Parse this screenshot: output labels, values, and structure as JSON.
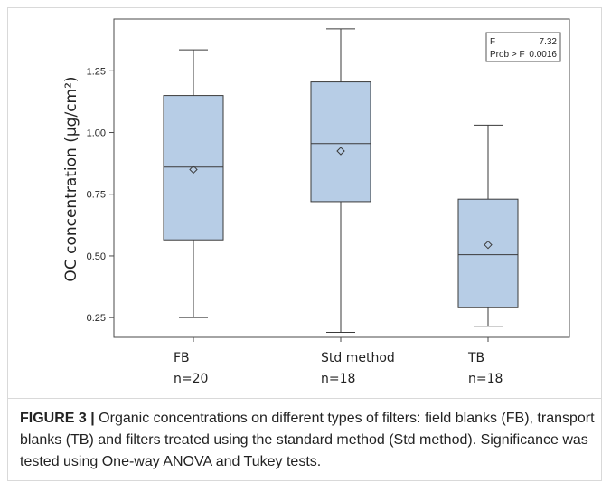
{
  "chart_data": {
    "type": "box",
    "ylabel": "OC concentration (µg/cm²)",
    "ylim": [
      0.17,
      1.46
    ],
    "yticks": [
      "0.25",
      "0.50",
      "0.75",
      "1.00",
      "1.25"
    ],
    "ytick_values": [
      0.25,
      0.5,
      0.75,
      1.0,
      1.25
    ],
    "categories": [
      {
        "name": "FB",
        "n": "n=20",
        "min": 0.25,
        "q1": 0.565,
        "median": 0.86,
        "q3": 1.15,
        "max": 1.335,
        "mean": 0.85
      },
      {
        "name": "Std method",
        "n": "n=18",
        "min": 0.19,
        "q1": 0.72,
        "median": 0.955,
        "q3": 1.205,
        "max": 1.42,
        "mean": 0.925
      },
      {
        "name": "TB",
        "n": "n=18",
        "min": 0.215,
        "q1": 0.29,
        "median": 0.505,
        "q3": 0.73,
        "max": 1.03,
        "mean": 0.545
      }
    ],
    "stats": {
      "f_label": "F",
      "f_value": "7.32",
      "p_label": "Prob > F",
      "p_value": "0.0016"
    },
    "colors": {
      "box_fill": "#b7cde6",
      "stroke": "#3a3a3a"
    }
  },
  "caption": {
    "label": "FIGURE 3 |",
    "text": " Organic concentrations on different types of filters: field blanks (FB), transport blanks (TB) and filters treated using the standard method (Std method). Significance was tested using One-way ANOVA and Tukey tests."
  }
}
